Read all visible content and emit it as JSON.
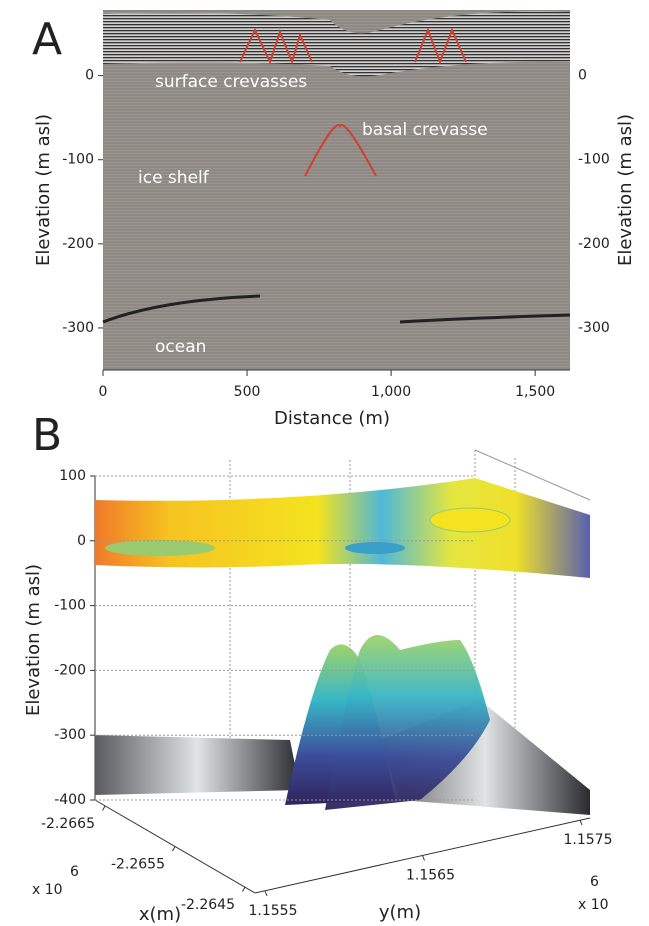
{
  "panel_a": {
    "label": "A",
    "ylabel": "Elevation (m asl)",
    "xlabel": "Distance (m)",
    "xlim": [
      0,
      1621
    ],
    "ylim": [
      -350,
      78
    ],
    "xticks": [
      0,
      500,
      {
        "value": 1000,
        "label": "1,000"
      },
      {
        "value": 1500,
        "label": "1,500"
      }
    ],
    "yticks": [
      0,
      -100,
      -200,
      -300
    ],
    "annotations": [
      "surface crevasses",
      "basal crevasse",
      "ice shelf",
      "ocean"
    ]
  },
  "panel_b": {
    "label": "B",
    "zlabel": "Elevation (m asl)",
    "zlim": [
      -400,
      100
    ],
    "zticks": [
      100,
      0,
      -100,
      -200,
      -300,
      -400
    ],
    "xlabel": "x(m)",
    "xticks": [
      -2.2665,
      -2.2655,
      -2.2645
    ],
    "x_multiplier": "x 10",
    "x_exponent": "6",
    "ylabel": "y(m)",
    "yticks": [
      1.1555,
      1.1565,
      1.1575
    ],
    "y_multiplier": "x 10",
    "y_exponent": "6"
  }
}
